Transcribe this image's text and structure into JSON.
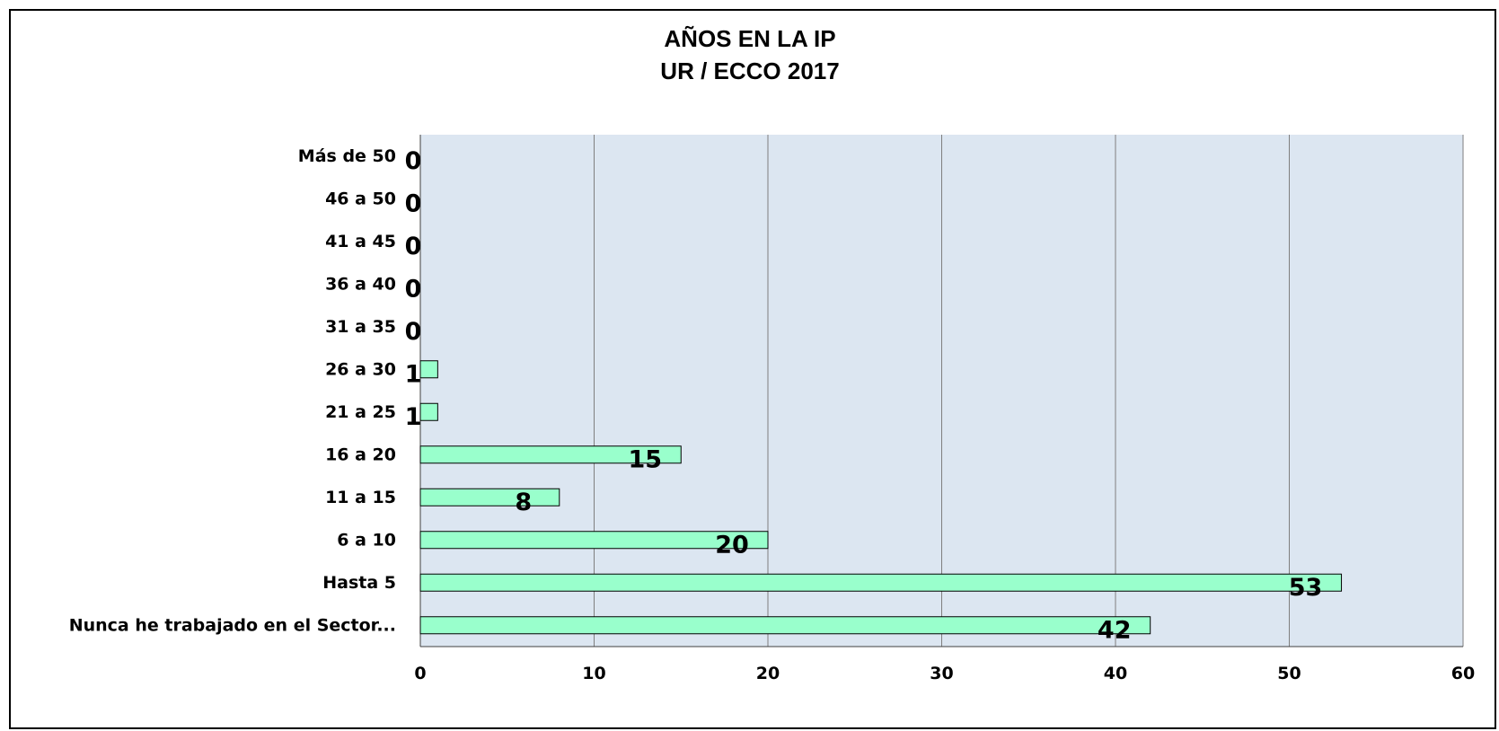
{
  "chart_data": {
    "type": "bar",
    "orientation": "horizontal",
    "title": [
      "AÑOS EN LA IP",
      "UR / ECCO 2017"
    ],
    "categories": [
      "Más de 50",
      "46 a 50",
      "41 a 45",
      "36 a 40",
      "31 a 35",
      "26 a 30",
      "21 a 25",
      "16 a 20",
      "11 a 15",
      "6 a 10",
      "Hasta 5",
      "Nunca he trabajado en el Sector..."
    ],
    "values": [
      0,
      0,
      0,
      0,
      0,
      1,
      1,
      15,
      8,
      20,
      53,
      42
    ],
    "xlim": [
      0,
      60
    ],
    "xticks": [
      0,
      10,
      20,
      30,
      40,
      50,
      60
    ],
    "xlabel": "",
    "ylabel": "",
    "grid": "vertical",
    "legend": "none",
    "colors": {
      "bar_fill": "#99FFCC",
      "bar_stroke": "#000000",
      "plot_background": "#DCE6F1",
      "gridline": "#7F7F7F"
    }
  }
}
